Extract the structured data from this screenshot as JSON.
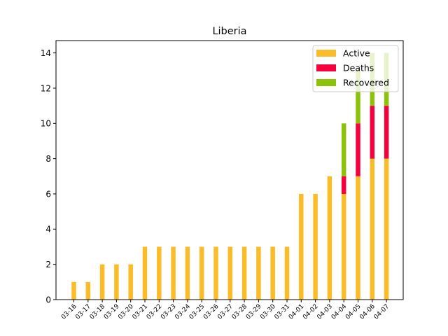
{
  "chart_data": {
    "type": "bar",
    "stacked": true,
    "title": "Liberia",
    "xlabel": "",
    "ylabel": "",
    "ylim": [
      0,
      14.7
    ],
    "yticks": [
      0,
      2,
      4,
      6,
      8,
      10,
      12,
      14
    ],
    "grid": false,
    "legend_position": "top-right",
    "categories": [
      "03-16",
      "03-17",
      "03-18",
      "03-19",
      "03-20",
      "03-21",
      "03-22",
      "03-23",
      "03-24",
      "03-25",
      "03-26",
      "03-27",
      "03-28",
      "03-29",
      "03-30",
      "03-31",
      "04-01",
      "04-02",
      "04-03",
      "04-04",
      "04-05",
      "04-06",
      "04-07"
    ],
    "series": [
      {
        "name": "Active",
        "color": "#FBBC2A",
        "values": [
          1,
          1,
          2,
          2,
          2,
          3,
          3,
          3,
          3,
          3,
          3,
          3,
          3,
          3,
          3,
          3,
          6,
          6,
          7,
          6,
          7,
          8,
          8
        ]
      },
      {
        "name": "Deaths",
        "color": "#F5003C",
        "values": [
          0,
          0,
          0,
          0,
          0,
          0,
          0,
          0,
          0,
          0,
          0,
          0,
          0,
          0,
          0,
          0,
          0,
          0,
          0,
          1,
          3,
          3,
          3
        ]
      },
      {
        "name": "Recovered",
        "color": "#8CC20A",
        "values": [
          0,
          0,
          0,
          0,
          0,
          0,
          0,
          0,
          0,
          0,
          0,
          0,
          0,
          0,
          0,
          0,
          0,
          0,
          0,
          3,
          3,
          3,
          3
        ]
      }
    ]
  }
}
